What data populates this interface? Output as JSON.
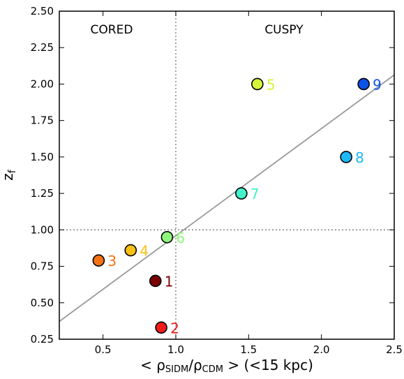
{
  "chart_data": {
    "type": "scatter",
    "xlabel": {
      "open": "< ρ",
      "sub1": "SIDM",
      "mid": "/ρ",
      "sub2": "CDM",
      "close": " >  (<15 kpc)"
    },
    "ylabel": {
      "main": "z",
      "sub": "f"
    },
    "xlim": [
      0.2,
      2.5
    ],
    "ylim": [
      0.25,
      2.5
    ],
    "xticks": [
      "0.5",
      "1.0",
      "1.5",
      "2.0",
      "2.5"
    ],
    "yticks": [
      "0.25",
      "0.50",
      "0.75",
      "1.00",
      "1.25",
      "1.50",
      "1.75",
      "2.00",
      "2.25",
      "2.50"
    ],
    "grid": false,
    "regions": {
      "left": "CORED",
      "right": "CUSPY"
    },
    "reference_lines": {
      "vertical_x": 1.0,
      "horizontal_y": 1.0,
      "style": "dotted"
    },
    "fit_line": {
      "slope": 0.735,
      "intercept": 0.225,
      "color": "#999999"
    },
    "points": [
      {
        "label": "1",
        "x": 0.86,
        "y": 0.65,
        "color": "#7b0000"
      },
      {
        "label": "2",
        "x": 0.9,
        "y": 0.33,
        "color": "#ef1a1a"
      },
      {
        "label": "3",
        "x": 0.47,
        "y": 0.79,
        "color": "#f57214"
      },
      {
        "label": "4",
        "x": 0.69,
        "y": 0.86,
        "color": "#fbc014"
      },
      {
        "label": "5",
        "x": 1.56,
        "y": 2.0,
        "color": "#d4f53a"
      },
      {
        "label": "6",
        "x": 0.94,
        "y": 0.95,
        "color": "#8ef57a"
      },
      {
        "label": "7",
        "x": 1.45,
        "y": 1.25,
        "color": "#44f2c8"
      },
      {
        "label": "8",
        "x": 2.17,
        "y": 1.5,
        "color": "#1cb8f5"
      },
      {
        "label": "9",
        "x": 2.29,
        "y": 2.0,
        "color": "#0c52e8"
      }
    ]
  }
}
